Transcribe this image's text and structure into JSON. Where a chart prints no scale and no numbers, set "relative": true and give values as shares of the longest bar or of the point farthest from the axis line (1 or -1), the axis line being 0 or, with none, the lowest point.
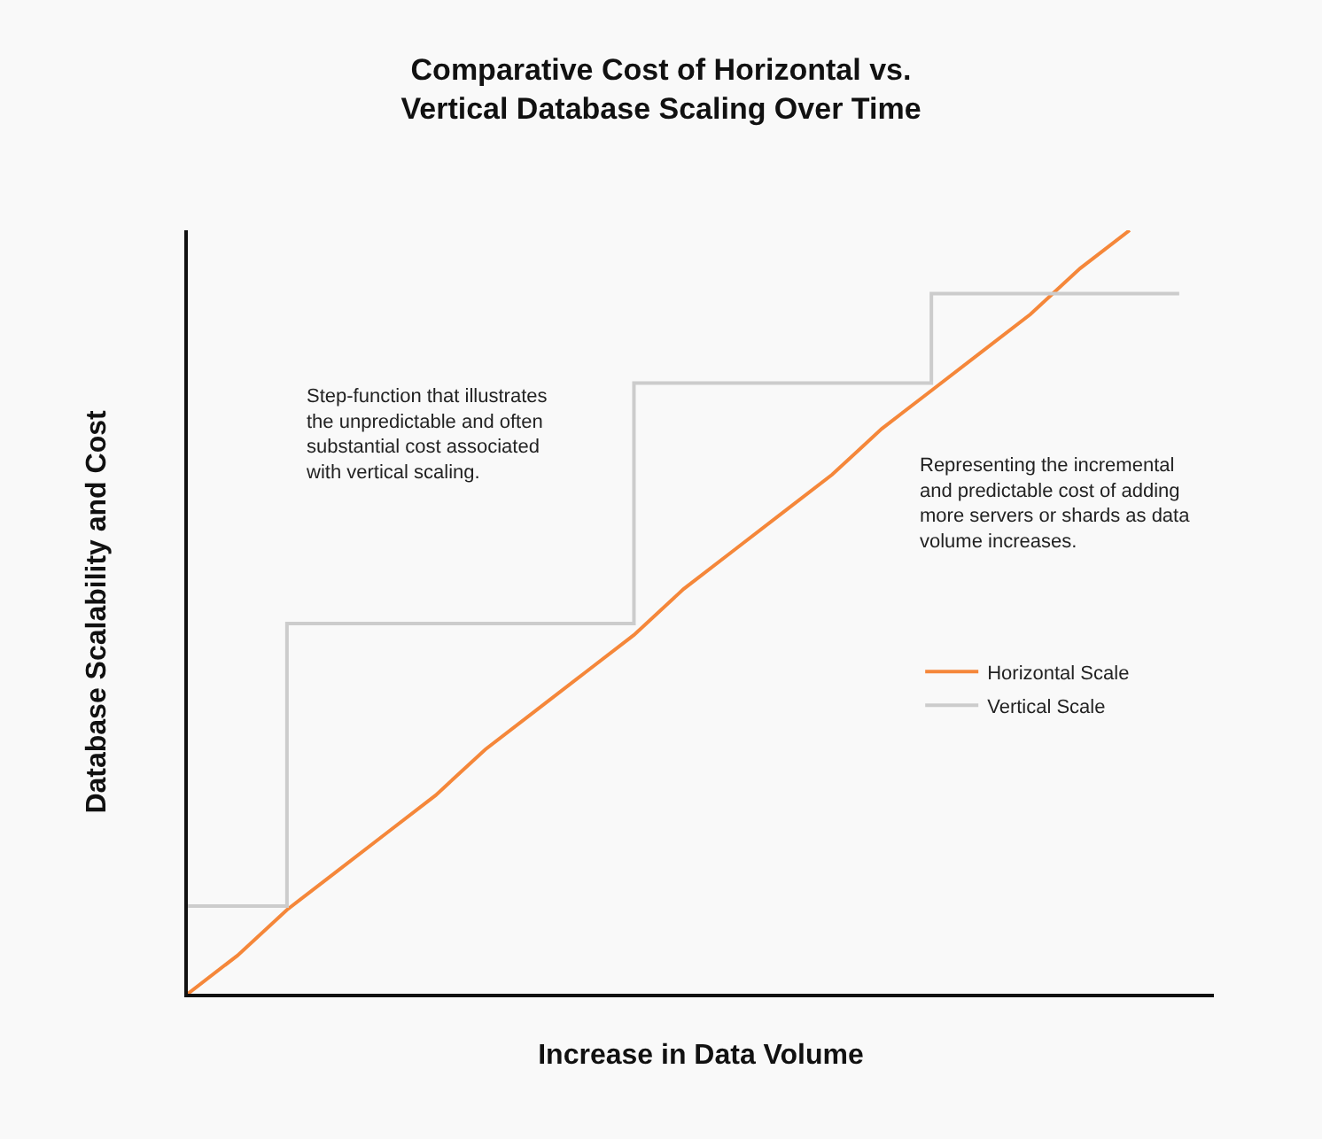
{
  "chart_data": {
    "type": "line",
    "title": "Comparative Cost of Horizontal vs.\nVertical Database Scaling Over Time",
    "xlabel": "Increase in Data Volume",
    "ylabel": "Database Scalability and Cost",
    "relative": true,
    "categories": [
      null,
      null,
      null,
      null,
      null,
      null,
      null,
      null,
      null,
      null,
      null,
      null,
      null,
      null,
      null,
      null,
      null,
      null,
      null,
      null,
      null
    ],
    "series": [
      {
        "name": "Horizontal Scale",
        "color": "#f5873a",
        "values": [
          0,
          0.05,
          0.11,
          0.16,
          0.21,
          0.26,
          0.32,
          0.37,
          0.42,
          0.47,
          0.53,
          0.58,
          0.63,
          0.68,
          0.74,
          0.79,
          0.84,
          0.89,
          0.95,
          1.0,
          null
        ]
      },
      {
        "name": "Vertical Scale",
        "type": "step",
        "color": "#cccccc",
        "values": [
          0.115,
          0.115,
          0.485,
          0.485,
          0.485,
          0.485,
          0.485,
          0.485,
          0.485,
          0.8,
          0.8,
          0.8,
          0.8,
          0.8,
          0.8,
          0.917,
          0.917,
          0.917,
          0.917,
          0.917,
          0.917
        ]
      }
    ],
    "annotations": [
      "Step-function that illustrates the unpredictable and often substantial cost associated with vertical scaling.",
      "Representing the incremental and predictable cost of adding more servers or shards as data volume increases."
    ],
    "legend": "right",
    "grid": false,
    "marker": "none"
  }
}
